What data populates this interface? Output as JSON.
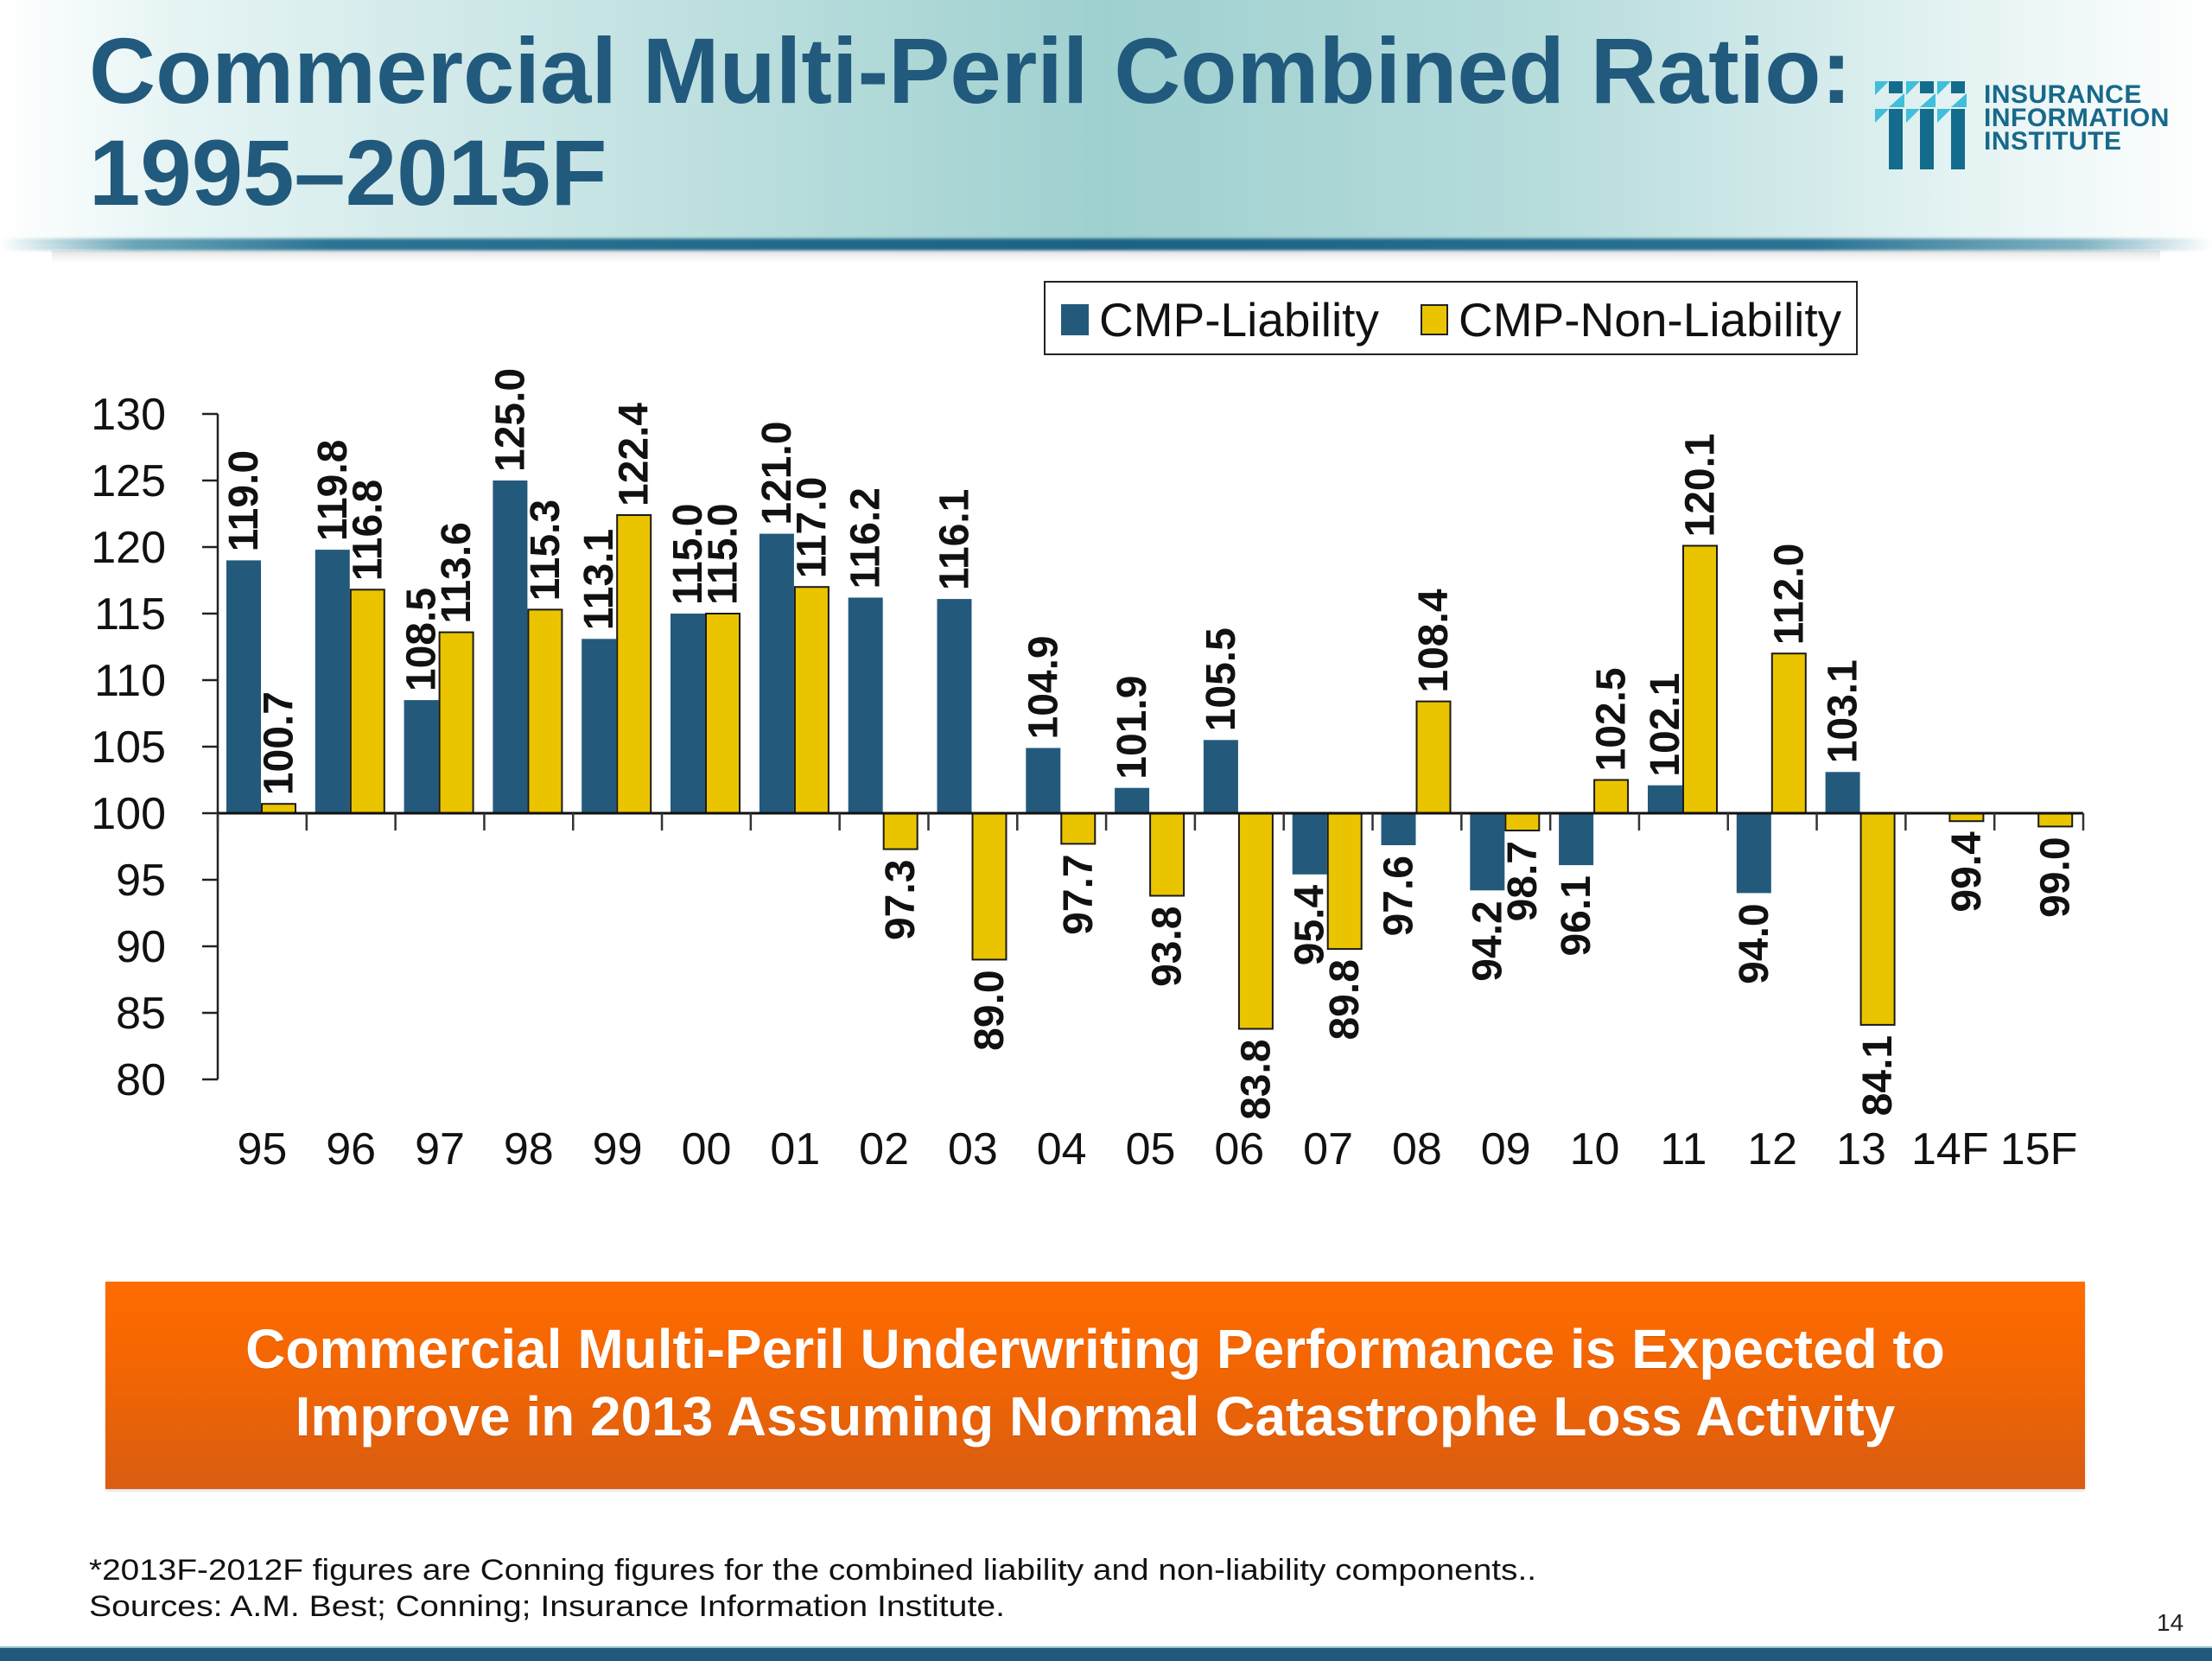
{
  "slide": {
    "title_line1": "Commercial Multi-Peril Combined Ratio:",
    "title_line2": "1995–2015F",
    "logo": {
      "icon": "iii-logo-icon",
      "lines": [
        "INSURANCE",
        "INFORMATION",
        "INSTITUTE"
      ]
    },
    "banner": {
      "line1": "Commercial Multi-Peril Underwriting Performance is Expected to",
      "line2": "Improve in 2013 Assuming Normal Catastrophe Loss Activity"
    },
    "footnotes": [
      "*2013F-2012F figures are Conning figures for the combined liability and non-liability components..",
      "Sources: A.M. Best; Conning; Insurance Information Institute."
    ],
    "page_number": "14"
  },
  "colors": {
    "liability": "#235a7c",
    "non_liability": "#ebc400",
    "title": "#215a7d",
    "banner": "#f26503"
  },
  "chart_data": {
    "type": "bar",
    "title": "Commercial Multi-Peril Combined Ratio: 1995–2015F",
    "xlabel": "",
    "ylabel": "",
    "ylim": [
      80,
      130
    ],
    "baseline": 100,
    "yticks": [
      80,
      85,
      90,
      95,
      100,
      105,
      110,
      115,
      120,
      125,
      130
    ],
    "grid": false,
    "legend_position": "top-right",
    "categories": [
      "95",
      "96",
      "97",
      "98",
      "99",
      "00",
      "01",
      "02",
      "03",
      "04",
      "05",
      "06",
      "07",
      "08",
      "09",
      "10",
      "11",
      "12",
      "13",
      "14F",
      "15F"
    ],
    "series": [
      {
        "name": "CMP-Liability",
        "color": "#235a7c",
        "values": [
          119.0,
          119.8,
          108.5,
          125.0,
          113.1,
          115.0,
          121.0,
          116.2,
          116.1,
          104.9,
          101.9,
          105.5,
          95.4,
          97.6,
          94.2,
          96.1,
          102.1,
          94.0,
          103.1,
          null,
          null
        ]
      },
      {
        "name": "CMP-Non-Liability",
        "color": "#ebc400",
        "values": [
          100.7,
          116.8,
          113.6,
          115.3,
          122.4,
          115.0,
          117.0,
          97.3,
          89.0,
          97.7,
          93.8,
          83.8,
          89.8,
          108.4,
          98.7,
          102.5,
          120.1,
          112.0,
          84.1,
          99.4,
          99.0
        ]
      }
    ]
  }
}
